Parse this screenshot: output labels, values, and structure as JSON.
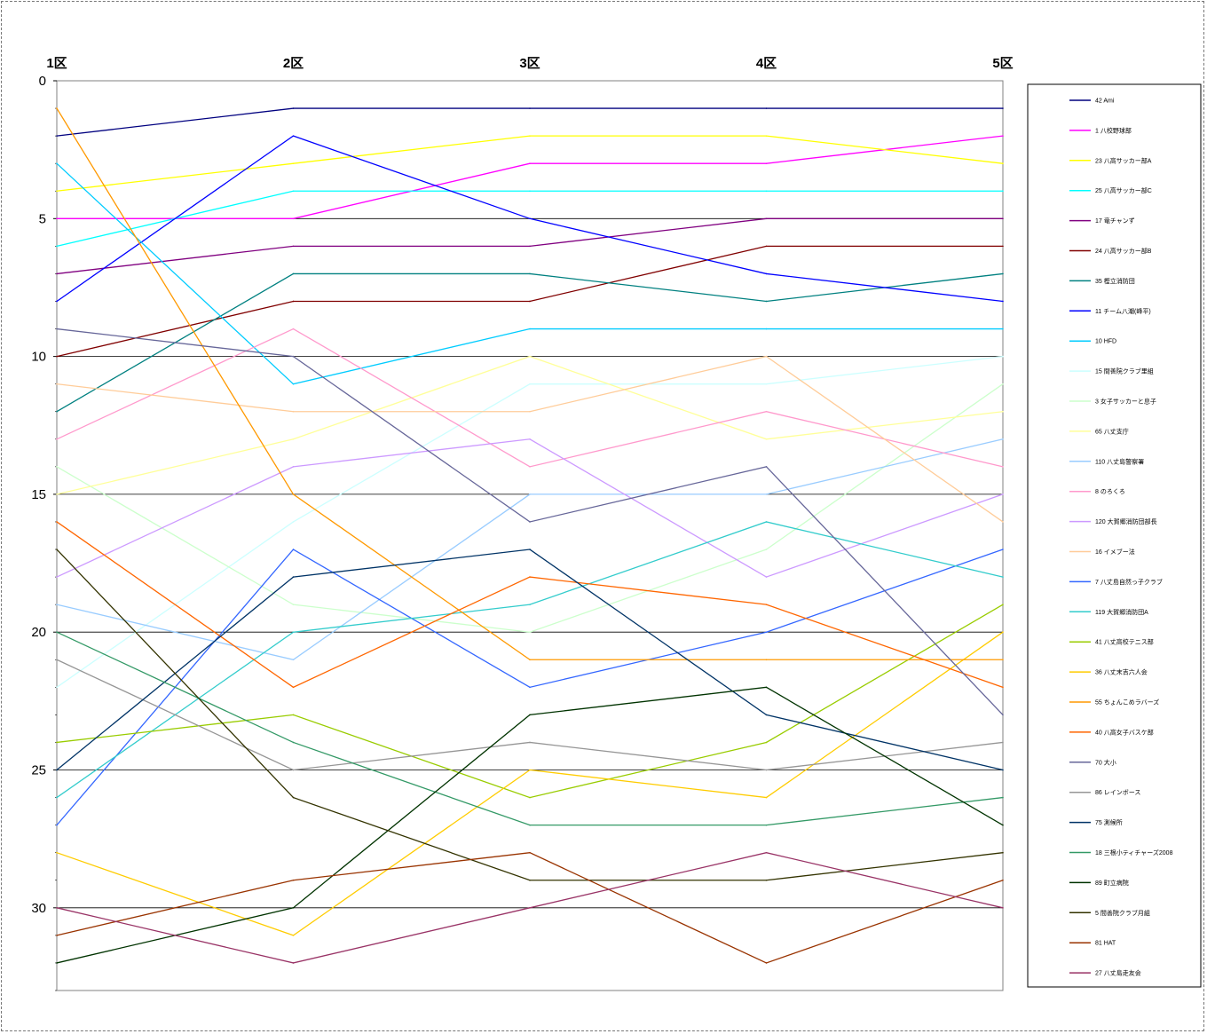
{
  "chart_data": {
    "type": "line",
    "title": "",
    "xlabel": "",
    "ylabel": "",
    "categories": [
      "1区",
      "2区",
      "3区",
      "4区",
      "5区"
    ],
    "ylim": [
      33,
      0
    ],
    "y_reversed": true,
    "yticks": [
      "0",
      "5",
      "10",
      "15",
      "20",
      "25",
      "30"
    ],
    "ytick_values": [
      0,
      5,
      10,
      15,
      20,
      25,
      30
    ],
    "grid": "horizontal",
    "legend_position": "right",
    "series": [
      {
        "name": "42 Ami",
        "color": "#00007f",
        "values": [
          2,
          1,
          1,
          1,
          1
        ]
      },
      {
        "name": "1 八校野球部",
        "color": "#ff00ff",
        "values": [
          5,
          5,
          3,
          3,
          2
        ]
      },
      {
        "name": "23 八高サッカー部A",
        "color": "#ffff00",
        "values": [
          4,
          3,
          2,
          2,
          3
        ]
      },
      {
        "name": "25 八高サッカー部C",
        "color": "#00ffff",
        "values": [
          6,
          4,
          4,
          4,
          4
        ]
      },
      {
        "name": "17 竜チャンず",
        "color": "#800080",
        "values": [
          7,
          6,
          6,
          5,
          5
        ]
      },
      {
        "name": "24 八高サッカー部B",
        "color": "#800000",
        "values": [
          10,
          8,
          8,
          6,
          6
        ]
      },
      {
        "name": "35 樫立消防団",
        "color": "#008080",
        "values": [
          12,
          7,
          7,
          8,
          7
        ]
      },
      {
        "name": "11 チーム八潮(峰平)",
        "color": "#0000ff",
        "values": [
          8,
          2,
          5,
          7,
          8
        ]
      },
      {
        "name": "10 HFD",
        "color": "#00ccff",
        "values": [
          3,
          11,
          9,
          9,
          9
        ]
      },
      {
        "name": "15 間善院クラブ里組",
        "color": "#ccffff",
        "values": [
          22,
          16,
          11,
          11,
          10
        ]
      },
      {
        "name": "3 女子サッカーと息子",
        "color": "#ccffcc",
        "values": [
          14,
          19,
          20,
          17,
          11
        ]
      },
      {
        "name": "65 八丈支庁",
        "color": "#ffff99",
        "values": [
          15,
          13,
          10,
          13,
          12
        ]
      },
      {
        "name": "110 八丈島警察署",
        "color": "#99ccff",
        "values": [
          19,
          21,
          15,
          15,
          13
        ]
      },
      {
        "name": "8 のろくろ",
        "color": "#ff99cc",
        "values": [
          13,
          9,
          14,
          12,
          14
        ]
      },
      {
        "name": "120 大賀郷消防団部長",
        "color": "#cc99ff",
        "values": [
          18,
          14,
          13,
          18,
          15
        ]
      },
      {
        "name": "16 イメブー法",
        "color": "#ffcc99",
        "values": [
          11,
          12,
          12,
          10,
          16
        ]
      },
      {
        "name": "7 八丈島自然っ子クラブ",
        "color": "#3366ff",
        "values": [
          27,
          17,
          22,
          20,
          17
        ]
      },
      {
        "name": "119 大賀郷消防団A",
        "color": "#33cccc",
        "values": [
          26,
          20,
          19,
          16,
          18
        ]
      },
      {
        "name": "41 八丈高校テニス部",
        "color": "#99cc00",
        "values": [
          24,
          23,
          26,
          24,
          19
        ]
      },
      {
        "name": "36 八丈末吉六人会",
        "color": "#ffcc00",
        "values": [
          28,
          31,
          25,
          26,
          20
        ]
      },
      {
        "name": "55 ちょんこめラバーズ",
        "color": "#ff9900",
        "values": [
          1,
          15,
          21,
          21,
          21
        ]
      },
      {
        "name": "40 八高女子バスケ部",
        "color": "#ff6600",
        "values": [
          16,
          22,
          18,
          19,
          22
        ]
      },
      {
        "name": "70 大小",
        "color": "#666699",
        "values": [
          9,
          10,
          16,
          14,
          23
        ]
      },
      {
        "name": "86 レインボース",
        "color": "#969696",
        "values": [
          21,
          25,
          24,
          25,
          24
        ]
      },
      {
        "name": "75 測候所",
        "color": "#003366",
        "values": [
          25,
          18,
          17,
          23,
          25
        ]
      },
      {
        "name": "18 三根小ティチャーズ2008",
        "color": "#339966",
        "values": [
          20,
          24,
          27,
          27,
          26
        ]
      },
      {
        "name": "89 町立病院",
        "color": "#003300",
        "values": [
          32,
          30,
          23,
          22,
          27
        ]
      },
      {
        "name": "5 間善院クラブ月組",
        "color": "#333300",
        "values": [
          17,
          26,
          29,
          29,
          28
        ]
      },
      {
        "name": "81 HAT",
        "color": "#993300",
        "values": [
          31,
          29,
          28,
          32,
          29
        ]
      },
      {
        "name": "27 八丈島走友会",
        "color": "#993366",
        "values": [
          30,
          32,
          30,
          28,
          30
        ]
      }
    ]
  }
}
